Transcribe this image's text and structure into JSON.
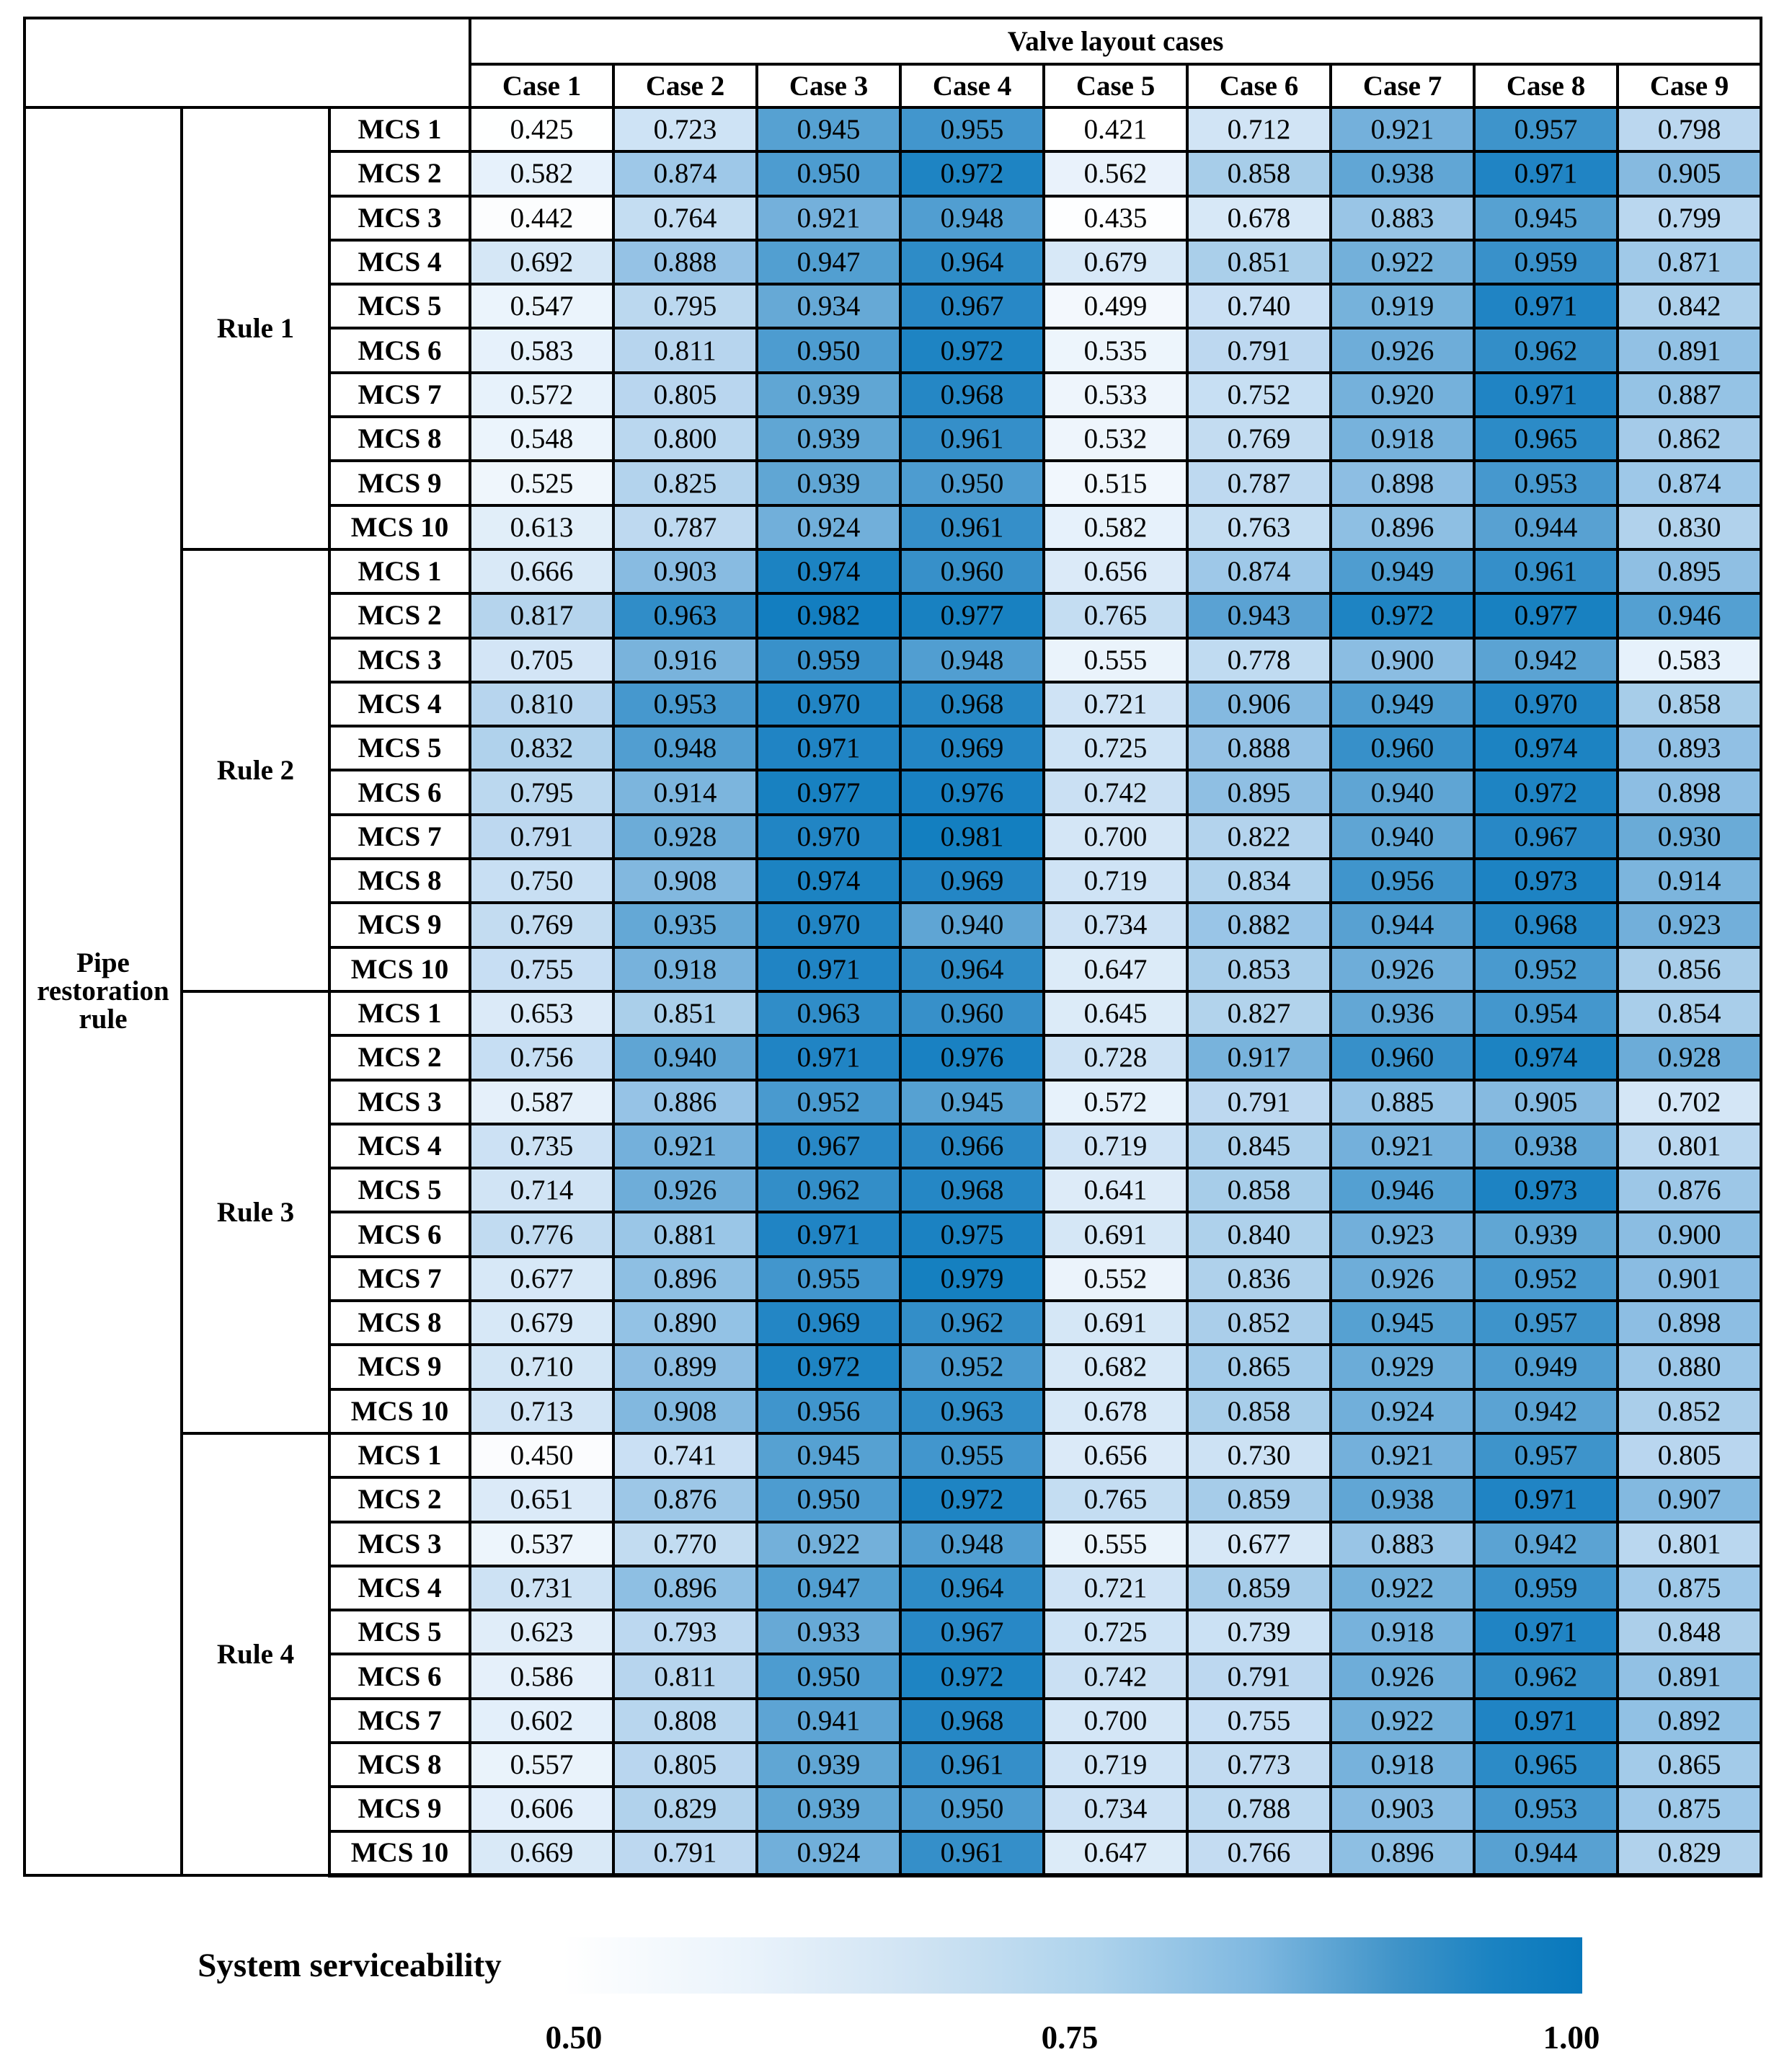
{
  "chart_data": {
    "type": "heatmap",
    "title": "Valve layout cases",
    "row_axis_label": "Pipe restoration rule",
    "columns": [
      "Case 1",
      "Case 2",
      "Case 3",
      "Case 4",
      "Case 5",
      "Case 6",
      "Case 7",
      "Case 8",
      "Case 9"
    ],
    "row_groups": [
      {
        "label": "Rule 1",
        "rows": [
          {
            "label": "MCS 1",
            "values": [
              "0.425",
              "0.723",
              "0.945",
              "0.955",
              "0.421",
              "0.712",
              "0.921",
              "0.957",
              "0.798"
            ]
          },
          {
            "label": "MCS 2",
            "values": [
              "0.582",
              "0.874",
              "0.950",
              "0.972",
              "0.562",
              "0.858",
              "0.938",
              "0.971",
              "0.905"
            ]
          },
          {
            "label": "MCS 3",
            "values": [
              "0.442",
              "0.764",
              "0.921",
              "0.948",
              "0.435",
              "0.678",
              "0.883",
              "0.945",
              "0.799"
            ]
          },
          {
            "label": "MCS 4",
            "values": [
              "0.692",
              "0.888",
              "0.947",
              "0.964",
              "0.679",
              "0.851",
              "0.922",
              "0.959",
              "0.871"
            ]
          },
          {
            "label": "MCS 5",
            "values": [
              "0.547",
              "0.795",
              "0.934",
              "0.967",
              "0.499",
              "0.740",
              "0.919",
              "0.971",
              "0.842"
            ]
          },
          {
            "label": "MCS 6",
            "values": [
              "0.583",
              "0.811",
              "0.950",
              "0.972",
              "0.535",
              "0.791",
              "0.926",
              "0.962",
              "0.891"
            ]
          },
          {
            "label": "MCS 7",
            "values": [
              "0.572",
              "0.805",
              "0.939",
              "0.968",
              "0.533",
              "0.752",
              "0.920",
              "0.971",
              "0.887"
            ]
          },
          {
            "label": "MCS 8",
            "values": [
              "0.548",
              "0.800",
              "0.939",
              "0.961",
              "0.532",
              "0.769",
              "0.918",
              "0.965",
              "0.862"
            ]
          },
          {
            "label": "MCS 9",
            "values": [
              "0.525",
              "0.825",
              "0.939",
              "0.950",
              "0.515",
              "0.787",
              "0.898",
              "0.953",
              "0.874"
            ]
          },
          {
            "label": "MCS 10",
            "values": [
              "0.613",
              "0.787",
              "0.924",
              "0.961",
              "0.582",
              "0.763",
              "0.896",
              "0.944",
              "0.830"
            ]
          }
        ]
      },
      {
        "label": "Rule 2",
        "rows": [
          {
            "label": "MCS 1",
            "values": [
              "0.666",
              "0.903",
              "0.974",
              "0.960",
              "0.656",
              "0.874",
              "0.949",
              "0.961",
              "0.895"
            ]
          },
          {
            "label": "MCS 2",
            "values": [
              "0.817",
              "0.963",
              "0.982",
              "0.977",
              "0.765",
              "0.943",
              "0.972",
              "0.977",
              "0.946"
            ]
          },
          {
            "label": "MCS 3",
            "values": [
              "0.705",
              "0.916",
              "0.959",
              "0.948",
              "0.555",
              "0.778",
              "0.900",
              "0.942",
              "0.583"
            ]
          },
          {
            "label": "MCS 4",
            "values": [
              "0.810",
              "0.953",
              "0.970",
              "0.968",
              "0.721",
              "0.906",
              "0.949",
              "0.970",
              "0.858"
            ]
          },
          {
            "label": "MCS 5",
            "values": [
              "0.832",
              "0.948",
              "0.971",
              "0.969",
              "0.725",
              "0.888",
              "0.960",
              "0.974",
              "0.893"
            ]
          },
          {
            "label": "MCS 6",
            "values": [
              "0.795",
              "0.914",
              "0.977",
              "0.976",
              "0.742",
              "0.895",
              "0.940",
              "0.972",
              "0.898"
            ]
          },
          {
            "label": "MCS 7",
            "values": [
              "0.791",
              "0.928",
              "0.970",
              "0.981",
              "0.700",
              "0.822",
              "0.940",
              "0.967",
              "0.930"
            ]
          },
          {
            "label": "MCS 8",
            "values": [
              "0.750",
              "0.908",
              "0.974",
              "0.969",
              "0.719",
              "0.834",
              "0.956",
              "0.973",
              "0.914"
            ]
          },
          {
            "label": "MCS 9",
            "values": [
              "0.769",
              "0.935",
              "0.970",
              "0.940",
              "0.734",
              "0.882",
              "0.944",
              "0.968",
              "0.923"
            ]
          },
          {
            "label": "MCS 10",
            "values": [
              "0.755",
              "0.918",
              "0.971",
              "0.964",
              "0.647",
              "0.853",
              "0.926",
              "0.952",
              "0.856"
            ]
          }
        ]
      },
      {
        "label": "Rule 3",
        "rows": [
          {
            "label": "MCS 1",
            "values": [
              "0.653",
              "0.851",
              "0.963",
              "0.960",
              "0.645",
              "0.827",
              "0.936",
              "0.954",
              "0.854"
            ]
          },
          {
            "label": "MCS 2",
            "values": [
              "0.756",
              "0.940",
              "0.971",
              "0.976",
              "0.728",
              "0.917",
              "0.960",
              "0.974",
              "0.928"
            ]
          },
          {
            "label": "MCS 3",
            "values": [
              "0.587",
              "0.886",
              "0.952",
              "0.945",
              "0.572",
              "0.791",
              "0.885",
              "0.905",
              "0.702"
            ]
          },
          {
            "label": "MCS 4",
            "values": [
              "0.735",
              "0.921",
              "0.967",
              "0.966",
              "0.719",
              "0.845",
              "0.921",
              "0.938",
              "0.801"
            ]
          },
          {
            "label": "MCS 5",
            "values": [
              "0.714",
              "0.926",
              "0.962",
              "0.968",
              "0.641",
              "0.858",
              "0.946",
              "0.973",
              "0.876"
            ]
          },
          {
            "label": "MCS 6",
            "values": [
              "0.776",
              "0.881",
              "0.971",
              "0.975",
              "0.691",
              "0.840",
              "0.923",
              "0.939",
              "0.900"
            ]
          },
          {
            "label": "MCS 7",
            "values": [
              "0.677",
              "0.896",
              "0.955",
              "0.979",
              "0.552",
              "0.836",
              "0.926",
              "0.952",
              "0.901"
            ]
          },
          {
            "label": "MCS 8",
            "values": [
              "0.679",
              "0.890",
              "0.969",
              "0.962",
              "0.691",
              "0.852",
              "0.945",
              "0.957",
              "0.898"
            ]
          },
          {
            "label": "MCS 9",
            "values": [
              "0.710",
              "0.899",
              "0.972",
              "0.952",
              "0.682",
              "0.865",
              "0.929",
              "0.949",
              "0.880"
            ]
          },
          {
            "label": "MCS 10",
            "values": [
              "0.713",
              "0.908",
              "0.956",
              "0.963",
              "0.678",
              "0.858",
              "0.924",
              "0.942",
              "0.852"
            ]
          }
        ]
      },
      {
        "label": "Rule 4",
        "rows": [
          {
            "label": "MCS 1",
            "values": [
              "0.450",
              "0.741",
              "0.945",
              "0.955",
              "0.656",
              "0.730",
              "0.921",
              "0.957",
              "0.805"
            ]
          },
          {
            "label": "MCS 2",
            "values": [
              "0.651",
              "0.876",
              "0.950",
              "0.972",
              "0.765",
              "0.859",
              "0.938",
              "0.971",
              "0.907"
            ]
          },
          {
            "label": "MCS 3",
            "values": [
              "0.537",
              "0.770",
              "0.922",
              "0.948",
              "0.555",
              "0.677",
              "0.883",
              "0.942",
              "0.801"
            ]
          },
          {
            "label": "MCS 4",
            "values": [
              "0.731",
              "0.896",
              "0.947",
              "0.964",
              "0.721",
              "0.859",
              "0.922",
              "0.959",
              "0.875"
            ]
          },
          {
            "label": "MCS 5",
            "values": [
              "0.623",
              "0.793",
              "0.933",
              "0.967",
              "0.725",
              "0.739",
              "0.918",
              "0.971",
              "0.848"
            ]
          },
          {
            "label": "MCS 6",
            "values": [
              "0.586",
              "0.811",
              "0.950",
              "0.972",
              "0.742",
              "0.791",
              "0.926",
              "0.962",
              "0.891"
            ]
          },
          {
            "label": "MCS 7",
            "values": [
              "0.602",
              "0.808",
              "0.941",
              "0.968",
              "0.700",
              "0.755",
              "0.922",
              "0.971",
              "0.892"
            ]
          },
          {
            "label": "MCS 8",
            "values": [
              "0.557",
              "0.805",
              "0.939",
              "0.961",
              "0.719",
              "0.773",
              "0.918",
              "0.965",
              "0.865"
            ]
          },
          {
            "label": "MCS 9",
            "values": [
              "0.606",
              "0.829",
              "0.939",
              "0.950",
              "0.734",
              "0.788",
              "0.903",
              "0.953",
              "0.875"
            ]
          },
          {
            "label": "MCS 10",
            "values": [
              "0.669",
              "0.791",
              "0.924",
              "0.961",
              "0.647",
              "0.766",
              "0.896",
              "0.944",
              "0.829"
            ]
          }
        ]
      }
    ],
    "colorbar": {
      "label": "System serviceability",
      "ticks": [
        "0.50",
        "0.75",
        "1.00"
      ],
      "range": [
        0.5,
        1.0
      ],
      "color_low": "#ffffff",
      "color_mid": "#aed3ec",
      "color_high": "#0878bc"
    }
  }
}
